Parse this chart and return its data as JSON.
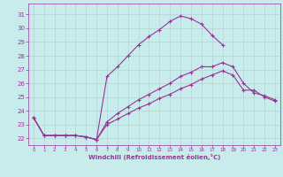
{
  "xlabel": "Windchill (Refroidissement éolien,°C)",
  "xlim": [
    -0.5,
    23.5
  ],
  "ylim": [
    21.5,
    31.8
  ],
  "yticks": [
    22,
    23,
    24,
    25,
    26,
    27,
    28,
    29,
    30,
    31
  ],
  "xticks": [
    0,
    1,
    2,
    3,
    4,
    5,
    6,
    7,
    8,
    9,
    10,
    11,
    12,
    13,
    14,
    15,
    16,
    17,
    18,
    19,
    20,
    21,
    22,
    23
  ],
  "background_color": "#c8ecec",
  "grid_color": "#b0cccc",
  "line_color": "#993399",
  "series": {
    "line1_x": [
      0,
      1,
      2,
      3,
      4,
      5,
      6,
      7,
      8,
      9,
      10,
      11,
      12,
      13,
      14,
      15,
      16,
      17,
      18
    ],
    "line1_y": [
      23.5,
      22.2,
      22.2,
      22.2,
      22.2,
      22.1,
      21.9,
      26.5,
      27.2,
      28.0,
      28.8,
      29.4,
      29.9,
      30.5,
      30.9,
      30.7,
      30.3,
      29.5,
      28.8
    ],
    "line2_x": [
      0,
      1,
      2,
      3,
      4,
      5,
      6,
      7,
      8,
      9,
      10,
      11,
      12,
      13,
      14,
      15,
      16,
      17,
      18,
      19,
      20,
      21,
      22,
      23
    ],
    "line2_y": [
      23.5,
      22.2,
      22.2,
      22.2,
      22.2,
      22.1,
      21.9,
      23.2,
      23.8,
      24.3,
      24.8,
      25.2,
      25.6,
      26.0,
      26.5,
      26.8,
      27.2,
      27.2,
      27.5,
      27.2,
      26.0,
      25.3,
      25.1,
      24.8
    ],
    "line3_x": [
      0,
      1,
      2,
      3,
      4,
      5,
      6,
      7,
      8,
      9,
      10,
      11,
      12,
      13,
      14,
      15,
      16,
      17,
      18,
      19,
      20,
      21,
      22,
      23
    ],
    "line3_y": [
      23.5,
      22.2,
      22.2,
      22.2,
      22.2,
      22.1,
      21.9,
      23.0,
      23.4,
      23.8,
      24.2,
      24.5,
      24.9,
      25.2,
      25.6,
      25.9,
      26.3,
      26.6,
      26.9,
      26.6,
      25.5,
      25.5,
      25.0,
      24.7
    ]
  }
}
